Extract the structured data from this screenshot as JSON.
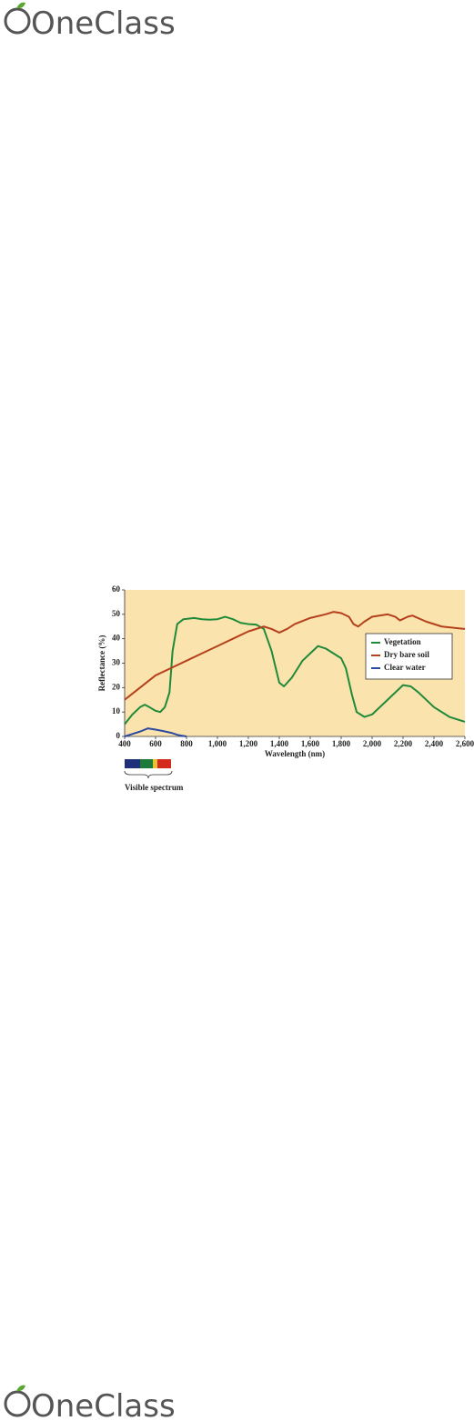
{
  "header": {
    "logo": "OneClass"
  },
  "footer": {
    "logo": "OneClass"
  },
  "chart_data": {
    "type": "line",
    "x_label": "Wavelength (nm)",
    "y_label": "Reflectance (%)",
    "annotation": "Visible spectrum",
    "xlim": [
      400,
      2600
    ],
    "ylim": [
      0,
      60
    ],
    "xticks": [
      400,
      600,
      800,
      {
        "value": 1000,
        "label": "1,000"
      },
      {
        "value": 1200,
        "label": "1,200"
      },
      {
        "value": 1400,
        "label": "1,400"
      },
      {
        "value": 1600,
        "label": "1,600"
      },
      {
        "value": 1800,
        "label": "1,800"
      },
      {
        "value": 2000,
        "label": "2,000"
      },
      {
        "value": 2200,
        "label": "2,200"
      },
      {
        "value": 2400,
        "label": "2,400"
      },
      {
        "value": 2600,
        "label": "2,600"
      }
    ],
    "yticks": [
      0,
      10,
      20,
      30,
      40,
      50,
      60
    ],
    "background": "#fbe3ad",
    "legend": "upper right",
    "series": [
      {
        "name": "Vegetation",
        "color": "#1f8a3a",
        "x": [
          400,
          450,
          500,
          530,
          560,
          600,
          630,
          660,
          690,
          710,
          740,
          780,
          850,
          900,
          950,
          1000,
          1050,
          1100,
          1150,
          1200,
          1250,
          1300,
          1350,
          1400,
          1430,
          1480,
          1550,
          1600,
          1650,
          1700,
          1750,
          1800,
          1830,
          1870,
          1900,
          1950,
          2000,
          2100,
          2200,
          2250,
          2300,
          2400,
          2500,
          2600
        ],
        "values": [
          5,
          9,
          12,
          13,
          12,
          10.5,
          10,
          12,
          18,
          35,
          46,
          48,
          48.5,
          48,
          47.8,
          48,
          49,
          48,
          46.5,
          46,
          45.8,
          44,
          35,
          22,
          20.5,
          24,
          31,
          34,
          37,
          36,
          34,
          32,
          28,
          17,
          10,
          8,
          9,
          15,
          21,
          20.5,
          18,
          12,
          8,
          6
        ]
      },
      {
        "name": "Dry bare soil",
        "color": "#b5401c",
        "x": [
          400,
          500,
          600,
          700,
          800,
          900,
          1000,
          1100,
          1200,
          1300,
          1350,
          1400,
          1450,
          1500,
          1600,
          1700,
          1750,
          1800,
          1850,
          1880,
          1910,
          1950,
          2000,
          2100,
          2150,
          2180,
          2230,
          2260,
          2350,
          2450,
          2600
        ],
        "values": [
          15,
          20,
          25,
          28,
          31,
          34,
          37,
          40,
          43,
          45,
          44,
          42.5,
          44,
          46,
          48.5,
          50,
          51,
          50.5,
          49,
          46,
          45,
          47,
          49,
          50,
          49,
          47.5,
          49,
          49.5,
          47,
          45,
          44
        ]
      },
      {
        "name": "Clear water",
        "color": "#2b4aa0",
        "x": [
          400,
          450,
          500,
          550,
          600,
          650,
          700,
          750,
          800
        ],
        "values": [
          0,
          1,
          2,
          3.3,
          2.8,
          2.2,
          1.5,
          0.5,
          0
        ]
      }
    ]
  }
}
